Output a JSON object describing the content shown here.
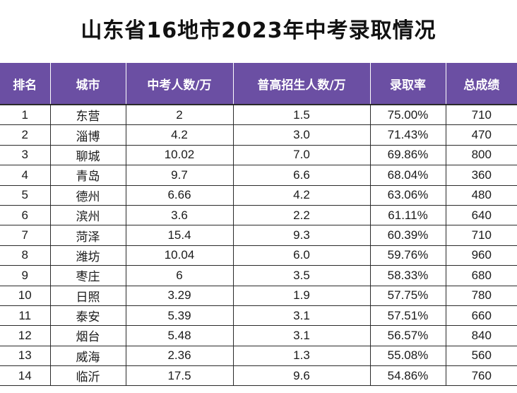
{
  "title": "山东省16地市2023年中考录取情况",
  "table": {
    "headers": [
      "排名",
      "城市",
      "中考人数/万",
      "普高招生人数/万",
      "录取率",
      "总成绩"
    ],
    "rows": [
      [
        "1",
        "东营",
        "2",
        "1.5",
        "75.00%",
        "710"
      ],
      [
        "2",
        "淄博",
        "4.2",
        "3.0",
        "71.43%",
        "470"
      ],
      [
        "3",
        "聊城",
        "10.02",
        "7.0",
        "69.86%",
        "800"
      ],
      [
        "4",
        "青岛",
        "9.7",
        "6.6",
        "68.04%",
        "360"
      ],
      [
        "5",
        "德州",
        "6.66",
        "4.2",
        "63.06%",
        "480"
      ],
      [
        "6",
        "滨州",
        "3.6",
        "2.2",
        "61.11%",
        "640"
      ],
      [
        "7",
        "菏泽",
        "15.4",
        "9.3",
        "60.39%",
        "710"
      ],
      [
        "8",
        "潍坊",
        "10.04",
        "6.0",
        "59.76%",
        "960"
      ],
      [
        "9",
        "枣庄",
        "6",
        "3.5",
        "58.33%",
        "680"
      ],
      [
        "10",
        "日照",
        "3.29",
        "1.9",
        "57.75%",
        "780"
      ],
      [
        "11",
        "泰安",
        "5.39",
        "3.1",
        "57.51%",
        "660"
      ],
      [
        "12",
        "烟台",
        "5.48",
        "3.1",
        "56.57%",
        "840"
      ],
      [
        "13",
        "威海",
        "2.36",
        "1.3",
        "55.08%",
        "560"
      ],
      [
        "14",
        "临沂",
        "17.5",
        "9.6",
        "54.86%",
        "760"
      ]
    ]
  },
  "colors": {
    "header_bg": "#6b4fa3",
    "header_text": "#ffffff",
    "grid_line": "#2a2a2a"
  }
}
